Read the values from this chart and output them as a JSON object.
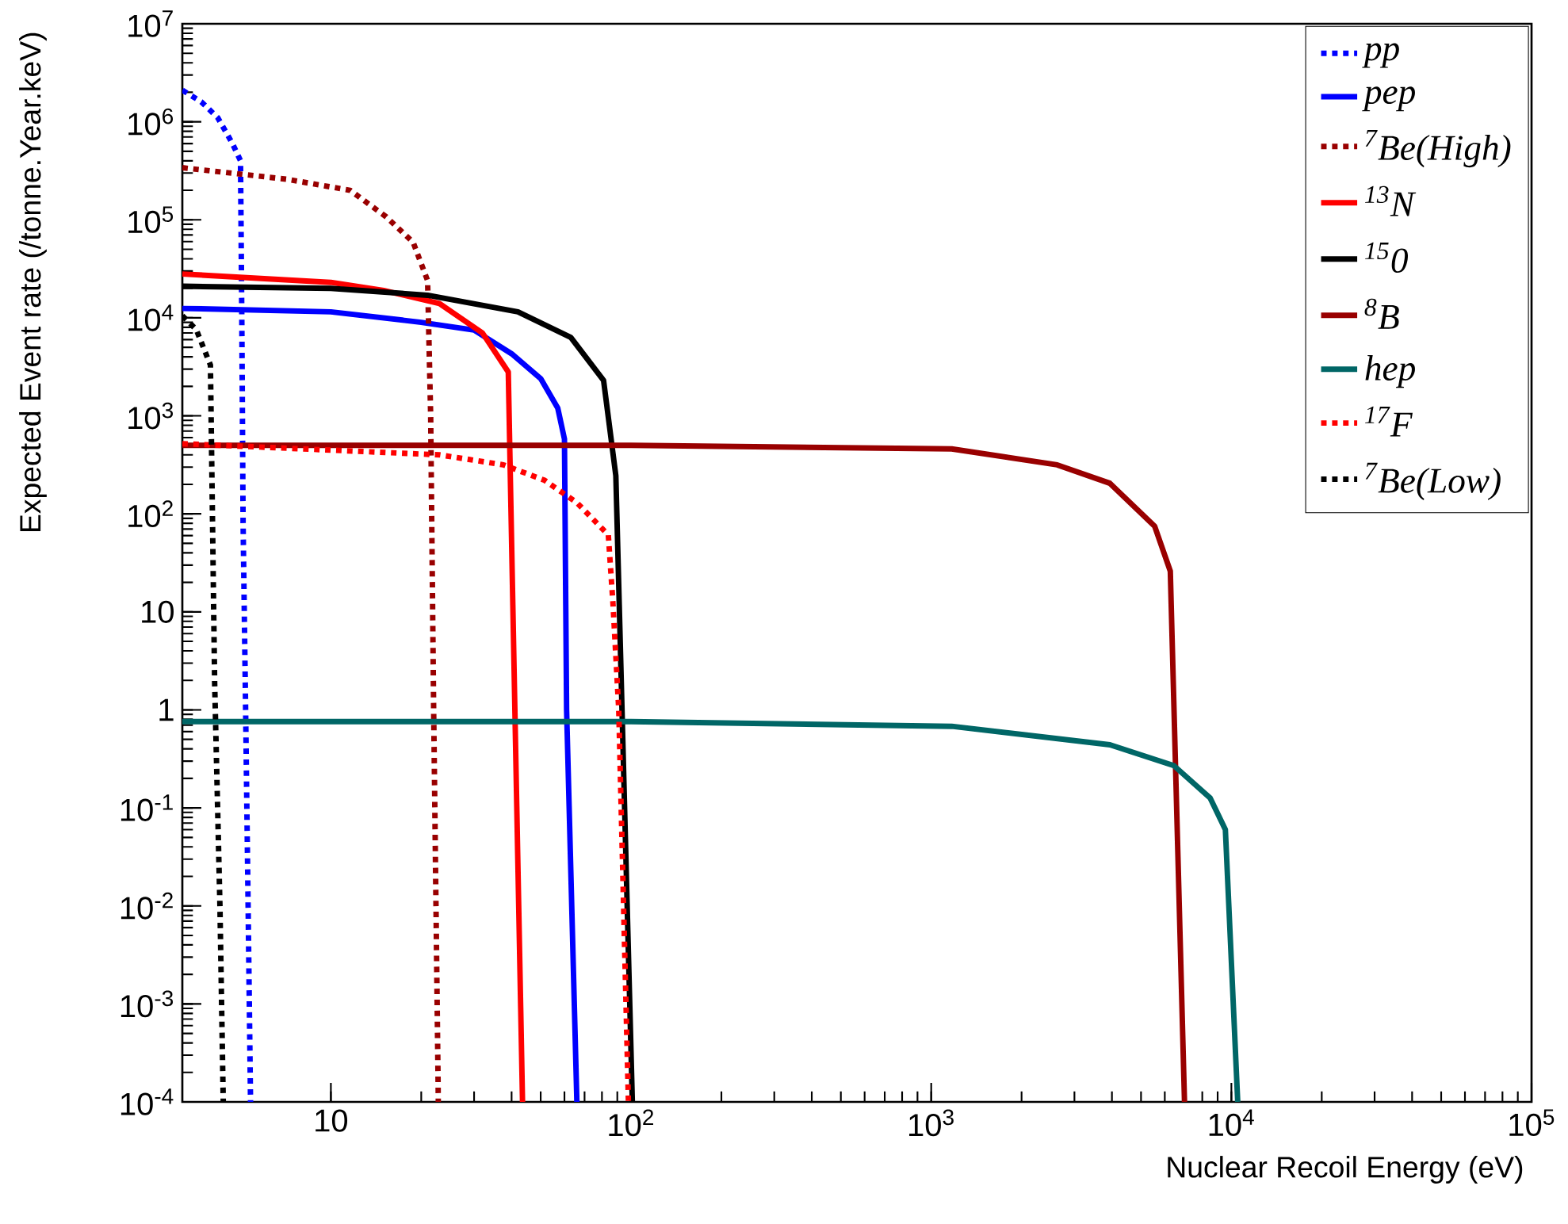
{
  "chart_data": {
    "type": "line",
    "xlabel": "Nuclear Recoil Energy (eV)",
    "ylabel": "Expected Event rate (/tonne.Year.keV)",
    "log": "xy",
    "grid": false,
    "legend": "top right",
    "marker": "none",
    "xlim": [
      3.2,
      100000
    ],
    "ylim": [
      0.0001,
      10000000
    ],
    "xticks": [
      10,
      {
        "value": 100,
        "label": "10$^{2}$"
      },
      {
        "value": 1000,
        "label": "10$^{3}$"
      },
      {
        "value": 10000,
        "label": "10$^{4}$"
      },
      {
        "value": 100000,
        "label": "10$^{5}$"
      }
    ],
    "yticks": [
      {
        "value": 0.0001,
        "label": "10$^{-4}$"
      },
      {
        "value": 0.001,
        "label": "10$^{-3}$"
      },
      {
        "value": 0.01,
        "label": "10$^{-2}$"
      },
      {
        "value": 0.1,
        "label": "10$^{-1}$"
      },
      1,
      10,
      {
        "value": 100,
        "label": "10$^{2}$"
      },
      {
        "value": 1000,
        "label": "10$^{3}$"
      },
      {
        "value": 10000,
        "label": "10$^{4}$"
      },
      {
        "value": 100000,
        "label": "10$^{5}$"
      },
      {
        "value": 1000000,
        "label": "10$^{6}$"
      },
      {
        "value": 10000000,
        "label": "10$^{7}$"
      }
    ],
    "series": [
      {
        "name": "pp",
        "color": "#0000ff",
        "line_style": "dotted",
        "x": [
          3.2,
          3.7,
          4.2,
          4.7,
          5.0,
          5.05,
          5.1,
          5.2,
          5.3,
          5.4
        ],
        "values": [
          2100000,
          1600000,
          1100000,
          600000,
          400000,
          10000,
          80,
          1,
          0.01,
          0.0001
        ]
      },
      {
        "name": "pep",
        "color": "#0000ff",
        "line_style": "solid",
        "x": [
          3.2,
          10,
          20,
          30,
          40,
          50,
          57,
          60,
          61,
          66
        ],
        "values": [
          12500,
          11500,
          9000,
          7500,
          4300,
          2400,
          1200,
          580,
          1,
          0.0001
        ]
      },
      {
        "name": "$^{7}$Be(High)",
        "color": "#990000",
        "line_style": "dotted",
        "x": [
          3.2,
          7.1,
          11.6,
          15.3,
          18.8,
          21,
          21.5,
          22,
          22.8
        ],
        "values": [
          340000,
          260000,
          200000,
          107000,
          59000,
          24000,
          1000,
          1,
          0.0001
        ]
      },
      {
        "name": "$^{13}$N",
        "color": "#ff0000",
        "line_style": "solid",
        "x": [
          3.2,
          10,
          15,
          23,
          32,
          39,
          43.5
        ],
        "values": [
          28000,
          23000,
          19000,
          14000,
          7000,
          2800,
          0.0001
        ]
      },
      {
        "name": "$^{15}$0",
        "color": "#000000",
        "line_style": "solid",
        "x": [
          3.2,
          10,
          21,
          42,
          63,
          81,
          89,
          101
        ],
        "values": [
          21000,
          20000,
          17000,
          11500,
          6300,
          2300,
          245,
          0.0001
        ]
      },
      {
        "name": "$^{8}$B",
        "color": "#990000",
        "line_style": "solid",
        "x": [
          3.2,
          100,
          1170,
          2630,
          3940,
          5550,
          6260,
          6980
        ],
        "values": [
          500,
          500,
          460,
          316,
          205,
          75,
          26,
          0.0001
        ]
      },
      {
        "name": "hep",
        "color": "#006666",
        "line_style": "solid",
        "x": [
          3.2,
          100,
          1170,
          3940,
          6430,
          8500,
          9550,
          10500
        ],
        "values": [
          0.76,
          0.76,
          0.68,
          0.44,
          0.27,
          0.126,
          0.06,
          0.0001
        ]
      },
      {
        "name": "$^{17}$F",
        "color": "#ff0000",
        "line_style": "dotted",
        "x": [
          3.2,
          23,
          37.6,
          51.5,
          66,
          84,
          87,
          91,
          98
        ],
        "values": [
          520,
          400,
          316,
          220,
          130,
          61,
          12.6,
          1,
          0.0001
        ]
      },
      {
        "name": "$^{7}$Be(Low)",
        "color": "#000000",
        "line_style": "dotted",
        "x": [
          3.2,
          3.56,
          3.97,
          4.0,
          4.1,
          4.27,
          4.38
        ],
        "values": [
          10500,
          7600,
          3300,
          575,
          1.9,
          0.01,
          0.0001
        ]
      }
    ]
  }
}
